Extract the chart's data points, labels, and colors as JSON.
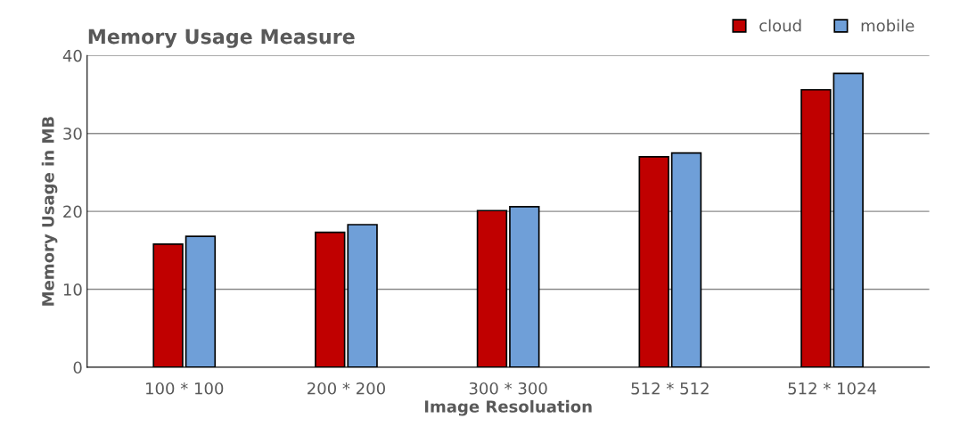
{
  "chart_data": {
    "type": "bar",
    "title": "Memory Usage Measure",
    "xlabel": "Image Resoluation",
    "ylabel": "Memory Usage in MB",
    "categories": [
      "100 * 100",
      "200 * 200",
      "300 * 300",
      "512 * 512",
      "512 * 1024"
    ],
    "series": [
      {
        "name": "cloud",
        "color": "#c00000",
        "values": [
          15.8,
          17.3,
          20.1,
          27.0,
          35.6
        ]
      },
      {
        "name": "mobile",
        "color": "#6f9fd8",
        "values": [
          16.8,
          18.3,
          20.6,
          27.5,
          37.7
        ]
      }
    ],
    "ylim": [
      0,
      40
    ],
    "yticks": [
      0,
      10,
      20,
      30,
      40
    ],
    "grid": "y",
    "legend": "top right"
  }
}
